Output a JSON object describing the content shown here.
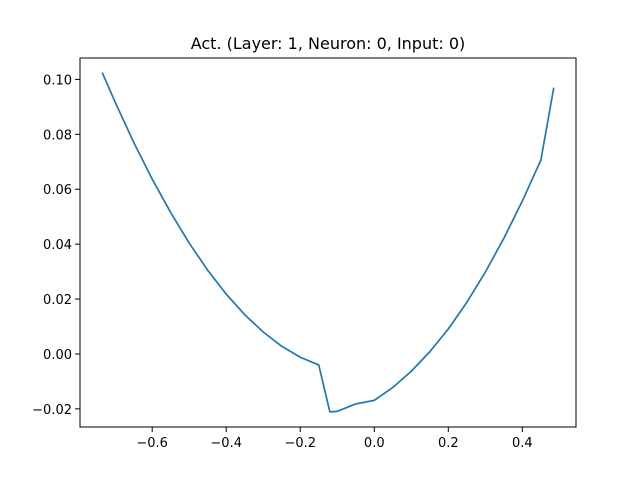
{
  "chart_data": {
    "type": "line",
    "title": "Act. (Layer: 1, Neuron: 0, Input: 0)",
    "xlabel": "",
    "ylabel": "",
    "xlim": [
      -0.795,
      0.545
    ],
    "ylim": [
      -0.0266,
      0.1078
    ],
    "grid": false,
    "x_ticks": [
      -0.6,
      -0.4,
      -0.2,
      0.0,
      0.2,
      0.4
    ],
    "x_tick_labels": [
      "−0.6",
      "−0.4",
      "−0.2",
      "0.0",
      "0.2",
      "0.4"
    ],
    "y_ticks": [
      -0.02,
      0.0,
      0.02,
      0.04,
      0.06,
      0.08,
      0.1
    ],
    "y_tick_labels": [
      "−0.02",
      "0.00",
      "0.02",
      "0.04",
      "0.06",
      "0.08",
      "0.10"
    ],
    "series": [
      {
        "color": "#1f77b4",
        "x": [
          -0.735,
          -0.7,
          -0.65,
          -0.6,
          -0.55,
          -0.5,
          -0.45,
          -0.4,
          -0.35,
          -0.3,
          -0.25,
          -0.2,
          -0.15,
          -0.12,
          -0.1,
          -0.05,
          0.0,
          0.05,
          0.1,
          0.15,
          0.2,
          0.25,
          0.3,
          0.35,
          0.4,
          0.45,
          0.485
        ],
        "y": [
          0.1025,
          0.0917,
          0.0771,
          0.0637,
          0.0515,
          0.0404,
          0.0305,
          0.0218,
          0.0143,
          0.008,
          0.0028,
          -0.0012,
          -0.004,
          -0.0211,
          -0.0209,
          -0.0182,
          -0.0169,
          -0.0122,
          -0.0063,
          0.0008,
          0.0091,
          0.0188,
          0.0298,
          0.0421,
          0.0557,
          0.0706,
          0.097
        ]
      }
    ]
  }
}
